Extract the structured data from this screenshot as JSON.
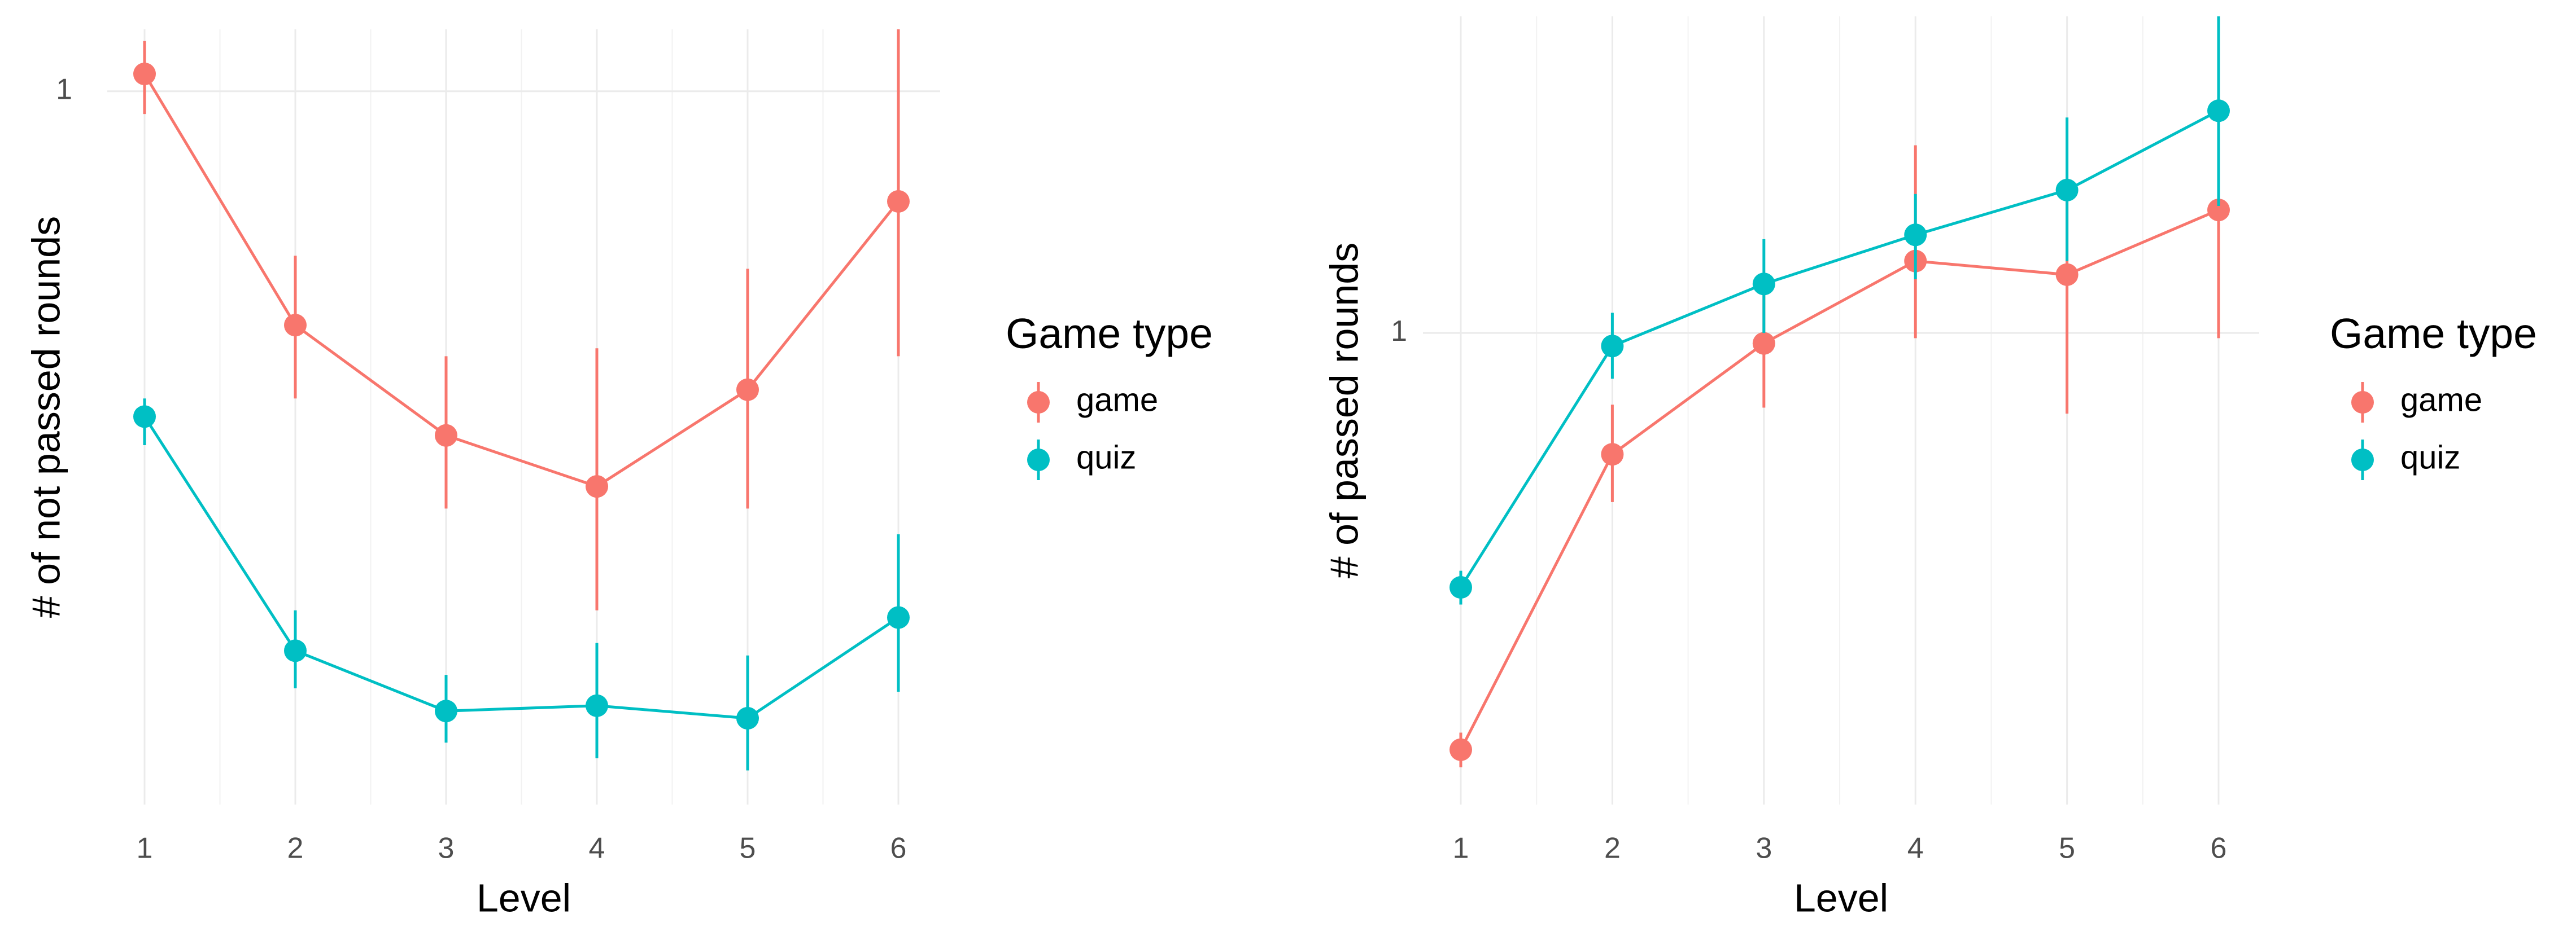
{
  "chart_data": [
    {
      "type": "line",
      "x_label": "Level",
      "y_label": "# of not passed rounds",
      "categories": [
        "1",
        "2",
        "3",
        "4",
        "5",
        "6"
      ],
      "series": [
        {
          "name": "game",
          "color": "#F8766D",
          "values": [
            1.04,
            0.59,
            0.46,
            0.41,
            0.51,
            0.78
          ],
          "lower": [
            0.95,
            0.5,
            0.39,
            0.31,
            0.39,
            0.55
          ],
          "upper": [
            1.12,
            0.69,
            0.55,
            0.56,
            0.67,
            1.15
          ]
        },
        {
          "name": "quiz",
          "color": "#00BFC4",
          "values": [
            0.48,
            0.283,
            0.247,
            0.25,
            0.243,
            0.305
          ],
          "lower": [
            0.45,
            0.26,
            0.23,
            0.222,
            0.216,
            0.258
          ],
          "upper": [
            0.5,
            0.31,
            0.268,
            0.288,
            0.28,
            0.368
          ]
        }
      ],
      "ylim": [
        0.2,
        1.15
      ],
      "yticks": [
        1
      ],
      "log_scale": true,
      "grid": true,
      "legend_title": "Game type",
      "legend_position": "right"
    },
    {
      "type": "line",
      "x_label": "Level",
      "y_label": "# of passed rounds",
      "categories": [
        "1",
        "2",
        "3",
        "4",
        "5",
        "6"
      ],
      "series": [
        {
          "name": "game",
          "color": "#F8766D",
          "values": [
            0.445,
            0.79,
            0.98,
            1.15,
            1.12,
            1.27
          ],
          "lower": [
            0.43,
            0.72,
            0.865,
            0.99,
            0.855,
            0.99
          ],
          "upper": [
            0.46,
            0.87,
            1.09,
            1.44,
            1.35,
            1.59
          ]
        },
        {
          "name": "quiz",
          "color": "#00BFC4",
          "values": [
            0.61,
            0.975,
            1.1,
            1.21,
            1.32,
            1.54
          ],
          "lower": [
            0.59,
            0.915,
            1.0,
            1.11,
            1.15,
            1.28
          ],
          "upper": [
            0.63,
            1.04,
            1.2,
            1.31,
            1.52,
            1.85
          ]
        }
      ],
      "ylim": [
        0.4,
        1.85
      ],
      "yticks": [
        1
      ],
      "log_scale": true,
      "grid": true,
      "legend_title": "Game type",
      "legend_position": "right"
    }
  ]
}
